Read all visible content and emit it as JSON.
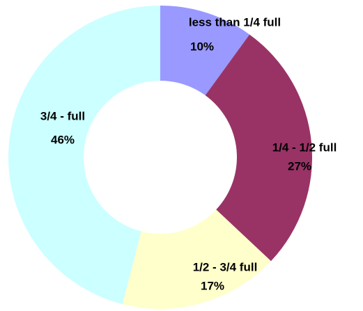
{
  "chart_data": {
    "type": "donut",
    "categories": [
      "less than 1/4 full",
      "1/4 - 1/2 full",
      "1/2 - 3/4 full",
      "3/4 - full"
    ],
    "values": [
      10,
      27,
      17,
      46
    ],
    "value_labels": [
      "10%",
      "27%",
      "17%",
      "46%"
    ],
    "colors": [
      "#9999ff",
      "#993366",
      "#ffffcc",
      "#ccffff"
    ]
  }
}
